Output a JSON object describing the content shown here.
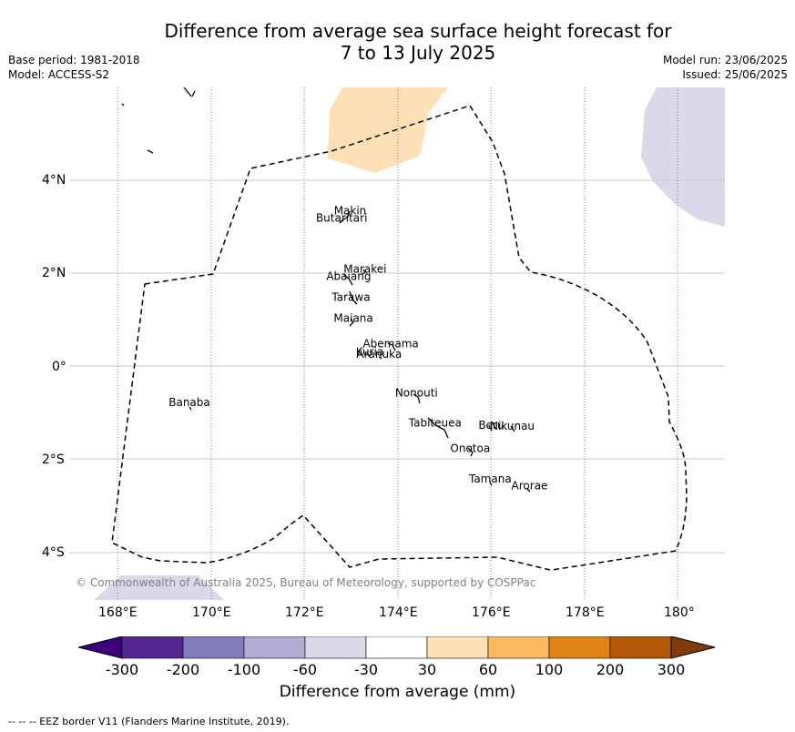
{
  "title_line1": "Difference from average sea surface height forecast for",
  "title_line2": "7 to 13 July 2025",
  "meta_left": [
    "Base period: 1981-2018",
    "Model: ACCESS-S2"
  ],
  "meta_right": [
    "Model run: 23/06/2025",
    "Issued: 25/06/2025"
  ],
  "lon_ticks": [
    "168°E",
    "170°E",
    "172°E",
    "174°E",
    "176°E",
    "178°E",
    "180°"
  ],
  "lat_ticks": [
    "4°N",
    "2°N",
    "0°",
    "2°S",
    "4°S"
  ],
  "islands": [
    {
      "name": "Makin",
      "lon": 172.98,
      "lat": 3.25
    },
    {
      "name": "Butaritari",
      "lon": 172.8,
      "lat": 3.1
    },
    {
      "name": "Marakei",
      "lon": 173.3,
      "lat": 2.0
    },
    {
      "name": "Abaiang",
      "lon": 172.95,
      "lat": 1.85
    },
    {
      "name": "Tarawa",
      "lon": 173.0,
      "lat": 1.4
    },
    {
      "name": "Maiana",
      "lon": 173.05,
      "lat": 0.95
    },
    {
      "name": "Abemama",
      "lon": 173.85,
      "lat": 0.4
    },
    {
      "name": "Kuria",
      "lon": 173.4,
      "lat": 0.22
    },
    {
      "name": "Aranuka",
      "lon": 173.6,
      "lat": 0.18
    },
    {
      "name": "Nonouti",
      "lon": 174.4,
      "lat": -0.65
    },
    {
      "name": "Banaba",
      "lon": 169.54,
      "lat": -0.86
    },
    {
      "name": "Tabiteuea",
      "lon": 174.8,
      "lat": -1.3
    },
    {
      "name": "Beru",
      "lon": 176.0,
      "lat": -1.35
    },
    {
      "name": "Nikunau",
      "lon": 176.45,
      "lat": -1.37
    },
    {
      "name": "Onotoa",
      "lon": 175.55,
      "lat": -1.85
    },
    {
      "name": "Tamana",
      "lon": 175.98,
      "lat": -2.5
    },
    {
      "name": "Arorae",
      "lon": 176.82,
      "lat": -2.65
    }
  ],
  "copyright": "© Commonwealth of Australia 2025, Bureau of Meteorology, supported by COSPPac",
  "colorbar": {
    "title": "Difference from average (mm)",
    "tick_labels": [
      "-300",
      "-200",
      "-100",
      "-60",
      "-30",
      "30",
      "60",
      "100",
      "200",
      "300"
    ],
    "colors": [
      "#3f007d",
      "#54278f",
      "#807dba",
      "#b1acd4",
      "#d9d9ea",
      "#ffffff",
      "#fee0b6",
      "#fdb863",
      "#e08214",
      "#b35806",
      "#7f3b08"
    ]
  },
  "footnote": "-- -- -- EEZ border V11 (Flanders Marine Institute, 2019)."
}
